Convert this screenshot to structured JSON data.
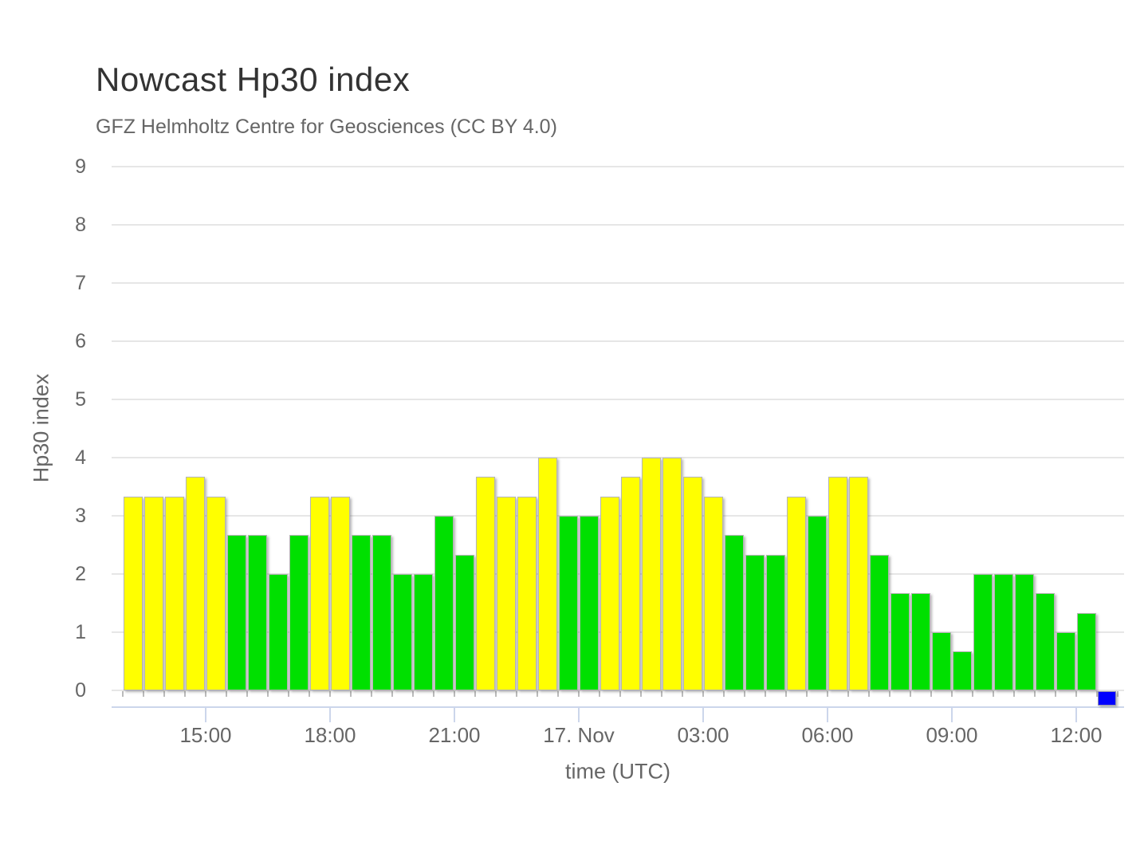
{
  "header": {
    "title": "Nowcast Hp30 index",
    "subtitle": "GFZ Helmholtz Centre for Geosciences (CC BY 4.0)"
  },
  "chart_data": {
    "type": "bar",
    "title": "Nowcast Hp30 index",
    "subtitle": "GFZ Helmholtz Centre for Geosciences (CC BY 4.0)",
    "xlabel": "time (UTC)",
    "ylabel": "Hp30 index",
    "ylim": [
      0,
      9
    ],
    "yticks": [
      0,
      1,
      2,
      3,
      4,
      5,
      6,
      7,
      8,
      9
    ],
    "xticklabels": [
      "15:00",
      "18:00",
      "21:00",
      "17. Nov",
      "03:00",
      "06:00",
      "09:00",
      "12:00"
    ],
    "grid": true,
    "legend": false,
    "bar_interval_minutes": 30,
    "colors": {
      "yellow": "#ffff00",
      "green": "#00e000",
      "blue": "#0000ff",
      "grid": "#e6e6e6",
      "axis_line": "#ccd6eb",
      "tick_text": "#666666",
      "title_text": "#333333",
      "bar_border": "#b5b5b5"
    },
    "points": [
      {
        "time": "13:00",
        "value": 3.33,
        "color": "yellow"
      },
      {
        "time": "13:30",
        "value": 3.33,
        "color": "yellow"
      },
      {
        "time": "14:00",
        "value": 3.33,
        "color": "yellow"
      },
      {
        "time": "14:30",
        "value": 3.67,
        "color": "yellow"
      },
      {
        "time": "15:00",
        "value": 3.33,
        "color": "yellow"
      },
      {
        "time": "15:30",
        "value": 2.67,
        "color": "green"
      },
      {
        "time": "16:00",
        "value": 2.67,
        "color": "green"
      },
      {
        "time": "16:30",
        "value": 2.0,
        "color": "green"
      },
      {
        "time": "17:00",
        "value": 2.67,
        "color": "green"
      },
      {
        "time": "17:30",
        "value": 3.33,
        "color": "yellow"
      },
      {
        "time": "18:00",
        "value": 3.33,
        "color": "yellow"
      },
      {
        "time": "18:30",
        "value": 2.67,
        "color": "green"
      },
      {
        "time": "19:00",
        "value": 2.67,
        "color": "green"
      },
      {
        "time": "19:30",
        "value": 2.0,
        "color": "green"
      },
      {
        "time": "20:00",
        "value": 2.0,
        "color": "green"
      },
      {
        "time": "20:30",
        "value": 3.0,
        "color": "green"
      },
      {
        "time": "21:00",
        "value": 2.33,
        "color": "green"
      },
      {
        "time": "21:30",
        "value": 3.67,
        "color": "yellow"
      },
      {
        "time": "22:00",
        "value": 3.33,
        "color": "yellow"
      },
      {
        "time": "22:30",
        "value": 3.33,
        "color": "yellow"
      },
      {
        "time": "23:00",
        "value": 4.0,
        "color": "yellow"
      },
      {
        "time": "23:30",
        "value": 3.0,
        "color": "green"
      },
      {
        "time": "00:00",
        "value": 3.0,
        "color": "green"
      },
      {
        "time": "00:30",
        "value": 3.33,
        "color": "yellow"
      },
      {
        "time": "01:00",
        "value": 3.67,
        "color": "yellow"
      },
      {
        "time": "01:30",
        "value": 4.0,
        "color": "yellow"
      },
      {
        "time": "02:00",
        "value": 4.0,
        "color": "yellow"
      },
      {
        "time": "02:30",
        "value": 3.67,
        "color": "yellow"
      },
      {
        "time": "03:00",
        "value": 3.33,
        "color": "yellow"
      },
      {
        "time": "03:30",
        "value": 2.67,
        "color": "green"
      },
      {
        "time": "04:00",
        "value": 2.33,
        "color": "green"
      },
      {
        "time": "04:30",
        "value": 2.33,
        "color": "green"
      },
      {
        "time": "05:00",
        "value": 3.33,
        "color": "yellow"
      },
      {
        "time": "05:30",
        "value": 3.0,
        "color": "green"
      },
      {
        "time": "06:00",
        "value": 3.67,
        "color": "yellow"
      },
      {
        "time": "06:30",
        "value": 3.67,
        "color": "yellow"
      },
      {
        "time": "07:00",
        "value": 2.33,
        "color": "green"
      },
      {
        "time": "07:30",
        "value": 1.67,
        "color": "green"
      },
      {
        "time": "08:00",
        "value": 1.67,
        "color": "green"
      },
      {
        "time": "08:30",
        "value": 1.0,
        "color": "green"
      },
      {
        "time": "09:00",
        "value": 0.67,
        "color": "green"
      },
      {
        "time": "09:30",
        "value": 2.0,
        "color": "green"
      },
      {
        "time": "10:00",
        "value": 2.0,
        "color": "green"
      },
      {
        "time": "10:30",
        "value": 2.0,
        "color": "green"
      },
      {
        "time": "11:00",
        "value": 1.67,
        "color": "green"
      },
      {
        "time": "11:30",
        "value": 1.0,
        "color": "green"
      },
      {
        "time": "12:00",
        "value": 1.33,
        "color": "green"
      }
    ],
    "current_interval_marker": {
      "time": "12:30",
      "color": "blue"
    }
  }
}
